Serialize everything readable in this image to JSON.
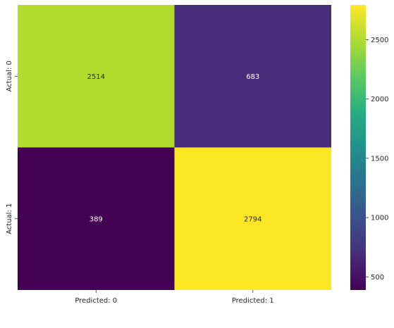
{
  "chart_data": {
    "type": "heatmap",
    "title": "",
    "x_tick_labels": [
      "Predicted: 0",
      "Predicted: 1"
    ],
    "y_tick_labels": [
      "Actual: 0",
      "Actual: 1"
    ],
    "matrix": [
      [
        2514,
        683
      ],
      [
        389,
        2794
      ]
    ],
    "colormap": "viridis",
    "colorbar": {
      "range": [
        389,
        2794
      ],
      "ticks": [
        "500",
        "1000",
        "1500",
        "2000",
        "2500"
      ]
    },
    "grid": false,
    "annotations": true
  }
}
